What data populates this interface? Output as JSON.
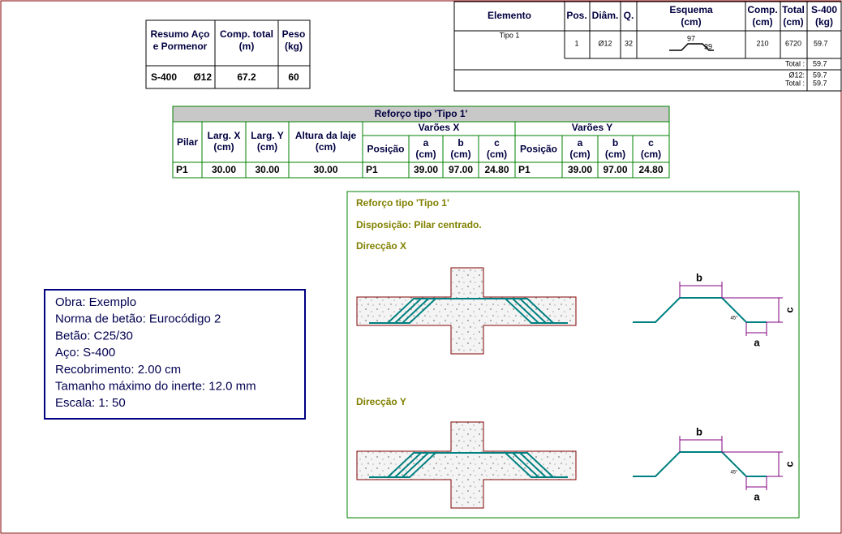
{
  "summary_table": {
    "headers": [
      [
        "Resumo Aço",
        "e Pormenor"
      ],
      [
        "Comp. total",
        "(m)"
      ],
      [
        "Peso",
        "(kg)"
      ]
    ],
    "rows": [
      [
        "S-400",
        "Ø12",
        "67.2",
        "60"
      ]
    ]
  },
  "schedule_table": {
    "headers": [
      [
        "Elemento"
      ],
      [
        "Pos."
      ],
      [
        "Diâm."
      ],
      [
        "Q."
      ],
      [
        "Esquema",
        "(cm)"
      ],
      [
        "Comp.",
        "(cm)"
      ],
      [
        "Total",
        "(cm)"
      ],
      [
        "S-400",
        "(kg)"
      ]
    ],
    "rows": [
      {
        "element": "Tipo 1",
        "pos": "1",
        "diam": "Ø12",
        "qty": "32",
        "sketch_labels": [
          "97",
          "39"
        ],
        "length": "210",
        "total": "6720",
        "weight": "59.7"
      }
    ],
    "total": {
      "label": "Total :",
      "value": "59.7"
    },
    "by_diameter": {
      "diameter": "Ø12:",
      "value": "59.7",
      "total_label": "Total :",
      "total_value": "59.7"
    }
  },
  "reinforcement_table": {
    "title": "Reforço tipo 'Tipo 1'",
    "group_headers": [
      "Varões X",
      "Varões Y"
    ],
    "headers": [
      [
        "Pilar"
      ],
      [
        "Larg. X",
        "(cm)"
      ],
      [
        "Larg. Y",
        "(cm)"
      ],
      [
        "Altura da laje",
        "(cm)"
      ],
      [
        "Posição"
      ],
      [
        "a",
        "(cm)"
      ],
      [
        "b",
        "(cm)"
      ],
      [
        "c",
        "(cm)"
      ],
      [
        "Posição"
      ],
      [
        "a",
        "(cm)"
      ],
      [
        "b",
        "(cm)"
      ],
      [
        "c",
        "(cm)"
      ]
    ],
    "rows": [
      [
        "P1",
        "30.00",
        "30.00",
        "30.00",
        "P1",
        "39.00",
        "97.00",
        "24.80",
        "P1",
        "39.00",
        "97.00",
        "24.80"
      ]
    ]
  },
  "notes": [
    "Obra: Exemplo",
    "Norma de betão: Eurocódigo 2",
    "Betão: C25/30",
    "Aço: S-400",
    "Recobrimento: 2.00 cm",
    "Tamanho máximo do inerte: 12.0 mm",
    "Escala: 1: 50"
  ],
  "detail": {
    "title": "Reforço tipo 'Tipo 1'",
    "disposition": "Disposição: Pilar centrado.",
    "views": [
      {
        "label": "Direcção X",
        "b": "b",
        "c": "c",
        "a": "a",
        "angle": "45°"
      },
      {
        "label": "Direcção Y",
        "b": "b",
        "c": "c",
        "a": "a",
        "angle": "45°"
      }
    ]
  }
}
